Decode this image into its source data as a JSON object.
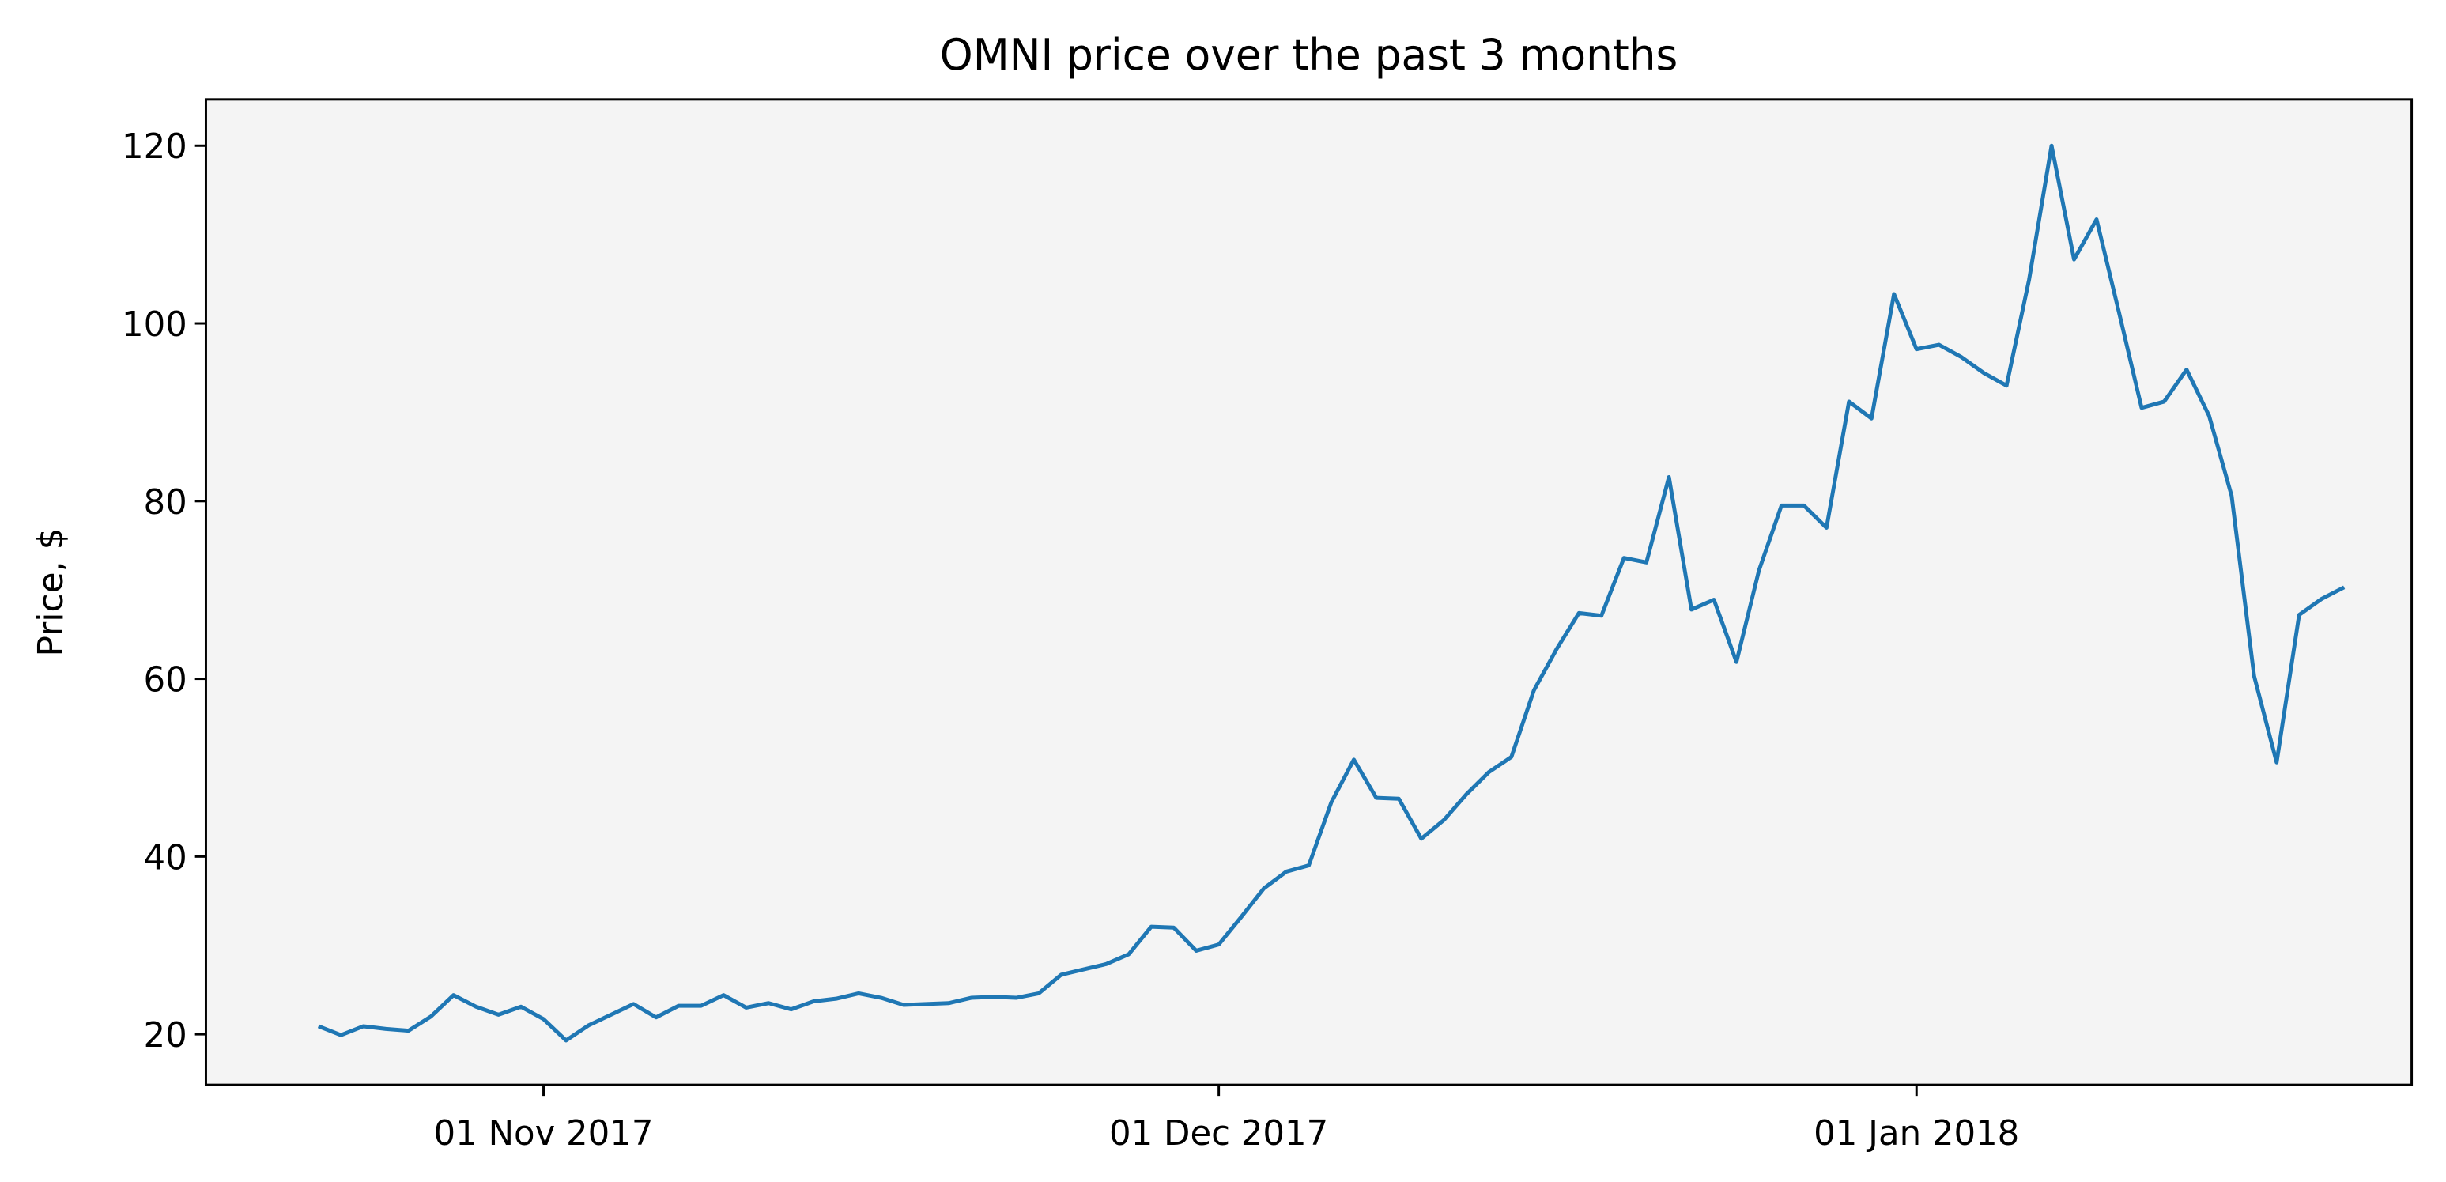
{
  "chart_data": {
    "type": "line",
    "title": "OMNI price over the past 3 months",
    "y_label": "Price, $",
    "x": [
      "2017-10-22",
      "2017-10-23",
      "2017-10-24",
      "2017-10-25",
      "2017-10-26",
      "2017-10-27",
      "2017-10-28",
      "2017-10-29",
      "2017-10-30",
      "2017-10-31",
      "2017-11-01",
      "2017-11-02",
      "2017-11-03",
      "2017-11-04",
      "2017-11-05",
      "2017-11-06",
      "2017-11-07",
      "2017-11-08",
      "2017-11-09",
      "2017-11-10",
      "2017-11-11",
      "2017-11-12",
      "2017-11-13",
      "2017-11-14",
      "2017-11-15",
      "2017-11-16",
      "2017-11-17",
      "2017-11-18",
      "2017-11-19",
      "2017-11-20",
      "2017-11-21",
      "2017-11-22",
      "2017-11-23",
      "2017-11-24",
      "2017-11-25",
      "2017-11-26",
      "2017-11-27",
      "2017-11-28",
      "2017-11-29",
      "2017-11-30",
      "2017-12-01",
      "2017-12-02",
      "2017-12-03",
      "2017-12-04",
      "2017-12-05",
      "2017-12-06",
      "2017-12-07",
      "2017-12-08",
      "2017-12-09",
      "2017-12-10",
      "2017-12-11",
      "2017-12-12",
      "2017-12-13",
      "2017-12-14",
      "2017-12-15",
      "2017-12-16",
      "2017-12-17",
      "2017-12-18",
      "2017-12-19",
      "2017-12-20",
      "2017-12-21",
      "2017-12-22",
      "2017-12-23",
      "2017-12-24",
      "2017-12-25",
      "2017-12-26",
      "2017-12-27",
      "2017-12-28",
      "2017-12-29",
      "2017-12-30",
      "2017-12-31",
      "2018-01-01",
      "2018-01-02",
      "2018-01-03",
      "2018-01-04",
      "2018-01-05",
      "2018-01-06",
      "2018-01-07",
      "2018-01-08",
      "2018-01-09",
      "2018-01-10",
      "2018-01-11",
      "2018-01-12",
      "2018-01-13",
      "2018-01-14",
      "2018-01-15",
      "2018-01-16",
      "2018-01-17",
      "2018-01-18",
      "2018-01-19",
      "2018-01-20"
    ],
    "series": [
      {
        "name": "OMNI",
        "color": "#1f77b4",
        "values": [
          20.9,
          19.9,
          20.9,
          20.6,
          20.4,
          22,
          24.4,
          23.1,
          22.2,
          23.1,
          21.7,
          19.3,
          21,
          22.2,
          23.4,
          21.9,
          23.2,
          23.2,
          24.4,
          23,
          23.5,
          22.8,
          23.7,
          24,
          24.6,
          24.1,
          23.3,
          23.4,
          23.5,
          24.1,
          24.2,
          24.1,
          24.6,
          26.7,
          27.3,
          27.9,
          29,
          32.1,
          32,
          29.4,
          30.1,
          33.2,
          36.4,
          38.3,
          39,
          46.1,
          50.9,
          46.6,
          46.5,
          42,
          44.1,
          47,
          49.5,
          51.2,
          58.7,
          63.3,
          67.4,
          67.1,
          73.6,
          73.1,
          82.7,
          67.8,
          68.9,
          61.9,
          72.2,
          79.5,
          79.5,
          77,
          91.2,
          89.3,
          103.3,
          97.1,
          97.6,
          96.2,
          94.4,
          93,
          104.9,
          120,
          107.2,
          111.7,
          101.2,
          90.5,
          91.2,
          94.8,
          89.6,
          80.6,
          60.3,
          50.6,
          67.2,
          69,
          70.3
        ]
      }
    ],
    "xlim": [
      "2017-10-17",
      "2018-01-23"
    ],
    "xticks": [
      {
        "value": "2017-11-01",
        "label": "01 Nov 2017"
      },
      {
        "value": "2017-12-01",
        "label": "01 Dec 2017"
      },
      {
        "value": "2018-01-01",
        "label": "01 Jan 2018"
      }
    ],
    "ylim": [
      14.3,
      125.2
    ],
    "yticks": [
      20,
      40,
      60,
      80,
      100,
      120
    ],
    "background": "#f4f4f4",
    "grid": false
  }
}
